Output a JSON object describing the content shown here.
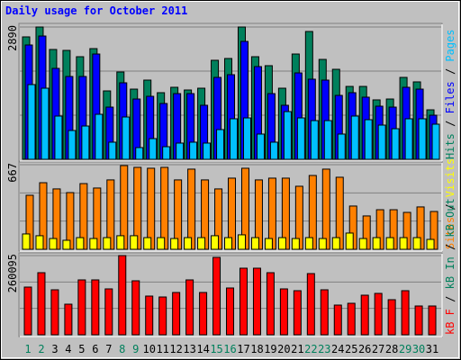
{
  "title": "Daily usage for October 2011",
  "categories": [
    1,
    2,
    3,
    4,
    5,
    6,
    7,
    8,
    9,
    10,
    11,
    12,
    13,
    14,
    15,
    16,
    17,
    18,
    19,
    20,
    21,
    22,
    23,
    24,
    25,
    26,
    27,
    28,
    29,
    30,
    31
  ],
  "category_colors": [
    "#00805c",
    "#00805c",
    "#000000",
    "#000000",
    "#000000",
    "#000000",
    "#000000",
    "#00805c",
    "#00805c",
    "#000000",
    "#000000",
    "#000000",
    "#000000",
    "#000000",
    "#00805c",
    "#00805c",
    "#000000",
    "#000000",
    "#000000",
    "#000000",
    "#000000",
    "#00805c",
    "#00805c",
    "#000000",
    "#000000",
    "#000000",
    "#000000",
    "#000000",
    "#00805c",
    "#00805c",
    "#000000"
  ],
  "legend_separator": " / ",
  "chart_data": [
    {
      "type": "bar",
      "ylim": [
        0,
        2890
      ],
      "yticks": [
        2890
      ],
      "grid_divisions": 3,
      "series": [
        {
          "name": "Hits",
          "color": "#00805c",
          "values": [
            2674,
            2890,
            2399,
            2379,
            2241,
            2418,
            1494,
            1907,
            1533,
            1730,
            1455,
            1573,
            1514,
            1553,
            2163,
            2202,
            2890,
            2241,
            2045,
            1553,
            2300,
            2792,
            2182,
            1966,
            1592,
            1592,
            1298,
            1317,
            1789,
            1691,
            1081
          ]
        },
        {
          "name": "Files",
          "color": "#0000ff",
          "values": [
            2497,
            2693,
            1986,
            1809,
            1809,
            2300,
            1140,
            1671,
            1317,
            1376,
            1219,
            1435,
            1435,
            1180,
            1789,
            1848,
            2575,
            2025,
            1435,
            1180,
            1887,
            1750,
            1730,
            1396,
            1455,
            1357,
            1160,
            1140,
            1573,
            1533,
            963
          ]
        },
        {
          "name": "Pages",
          "color": "#00c0ff",
          "values": [
            1632,
            1553,
            944,
            629,
            727,
            983,
            374,
            924,
            256,
            452,
            275,
            354,
            374,
            354,
            649,
            885,
            904,
            551,
            374,
            1042,
            904,
            845,
            845,
            551,
            944,
            865,
            747,
            668,
            885,
            885,
            767
          ]
        }
      ]
    },
    {
      "type": "bar",
      "ylim": [
        0,
        667
      ],
      "yticks": [
        667
      ],
      "grid_divisions": 3,
      "series": [
        {
          "name": "Sites",
          "color": "#ff8000",
          "values": [
            426,
            525,
            476,
            447,
            518,
            483,
            547,
            660,
            646,
            639,
            646,
            547,
            632,
            547,
            476,
            561,
            639,
            547,
            561,
            561,
            497,
            582,
            632,
            568,
            341,
            263,
            312,
            312,
            291,
            334,
            298
          ]
        },
        {
          "name": "Visits",
          "color": "#ffff00",
          "values": [
            121,
            107,
            85,
            71,
            92,
            85,
            92,
            107,
            107,
            92,
            92,
            85,
            92,
            92,
            107,
            92,
            114,
            92,
            85,
            92,
            85,
            92,
            85,
            92,
            128,
            85,
            92,
            92,
            92,
            92,
            78
          ]
        }
      ]
    },
    {
      "type": "bar",
      "ylim": [
        0,
        260095
      ],
      "yticks": [
        260095
      ],
      "grid_divisions": 3,
      "series": [
        {
          "name": "kB F",
          "color": "#ff0000",
          "values": [
            156668,
            203964,
            147800,
            100504,
            180316,
            180316,
            150756,
            260095,
            177360,
            127108,
            124152,
            138932,
            180316,
            138932,
            254216,
            153712,
            218744,
            218744,
            203964,
            150756,
            144844,
            201008,
            147800,
            97548,
            103460,
            130064,
            135976,
            115284,
            144844,
            94592,
            94592
          ]
        }
      ],
      "legend_extra": [
        {
          "name": "kB In",
          "color": "#00805c"
        },
        {
          "name": "kB Out",
          "color": "#00805c"
        }
      ]
    }
  ]
}
